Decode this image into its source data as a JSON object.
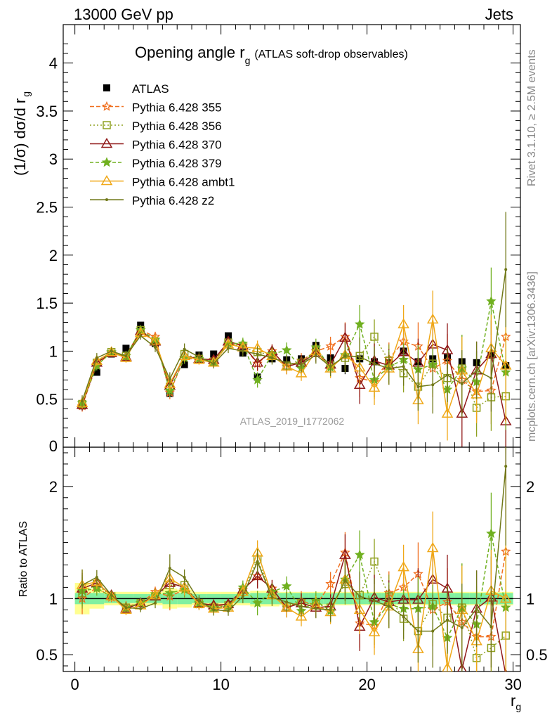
{
  "header": {
    "left": "13000 GeV pp",
    "right": "Jets"
  },
  "side_labels": {
    "rivet": "Rivet 3.1.10, ≥ 2.5M events",
    "mcplots": "mcplots.cern.ch [arXiv:1306.3436]"
  },
  "colors": {
    "ATLAS": "#000000",
    "p355": "#f07020",
    "p356": "#8fa020",
    "p370": "#901818",
    "p379": "#70b020",
    "ambt1": "#f0a818",
    "z2": "#707818",
    "band_inner": "#80f0a0",
    "band_outer": "#ffff90"
  },
  "chart_data": [
    {
      "type": "line",
      "title": "Opening angle r",
      "title_sub": "g",
      "title_suffix": "(ATLAS soft-drop observables)",
      "ylabel": "(1/σ) dσ/d r",
      "ylabel_sub": "g",
      "analysis_label": "ATLAS_2019_I1772062",
      "xlim": [
        -0.8,
        30.5
      ],
      "ylim": [
        0,
        4.4
      ],
      "yticks": [
        0.5,
        1,
        1.5,
        2,
        2.5,
        3,
        3.5,
        4
      ],
      "ytick_labels": [
        "0.5",
        "1",
        "1.5",
        "2",
        "2.5",
        "3",
        "3.5",
        "4"
      ],
      "x": [
        0.5,
        1.5,
        2.5,
        3.5,
        4.5,
        5.5,
        6.5,
        7.5,
        8.5,
        9.5,
        10.5,
        11.5,
        12.5,
        13.5,
        14.5,
        15.5,
        16.5,
        17.5,
        18.5,
        19.5,
        20.5,
        21.5,
        22.5,
        23.5,
        24.5,
        25.5,
        26.5,
        27.5,
        28.5,
        29.5
      ],
      "series": [
        {
          "name": "ATLAS",
          "key": "ATLAS",
          "marker": "square",
          "values": [
            0.43,
            0.78,
            0.97,
            1.03,
            1.27,
            1.08,
            0.56,
            0.86,
            0.96,
            0.97,
            1.16,
            0.98,
            0.73,
            0.92,
            0.91,
            0.92,
            1.06,
            0.93,
            0.82,
            0.92,
            0.89,
            0.88,
            1.0,
            0.89,
            0.92,
            0.93,
            0.89,
            0.88,
            0.96,
            0.85
          ]
        },
        {
          "name": "Pythia 6.428 355",
          "key": "p355",
          "marker": "star-open",
          "dash": "6,3",
          "values": [
            0.43,
            0.86,
            0.98,
            0.95,
            1.22,
            1.15,
            0.57,
            0.93,
            0.91,
            0.91,
            1.08,
            1.06,
            0.87,
            1.0,
            0.84,
            0.9,
            1.0,
            1.05,
            1.15,
            0.72,
            0.68,
            0.92,
            1.1,
            1.05,
            0.82,
            0.9,
            0.7,
            0.58,
            0.59,
            1.15
          ]
        },
        {
          "name": "Pythia 6.428 356",
          "key": "p356",
          "marker": "square-open",
          "dash": "2,3",
          "values": [
            0.45,
            0.88,
            0.99,
            0.95,
            1.22,
            1.1,
            0.63,
            0.97,
            0.92,
            0.89,
            1.09,
            1.04,
            0.99,
            0.96,
            0.85,
            0.88,
            1.01,
            0.85,
            0.93,
            0.95,
            1.15,
            0.9,
            0.77,
            0.63,
            0.87,
            0.72,
            0.82,
            0.41,
            0.52,
            0.53
          ]
        },
        {
          "name": "Pythia 6.428 370",
          "key": "p370",
          "marker": "triangle-open",
          "dash": "",
          "values": [
            0.44,
            0.88,
            0.98,
            0.94,
            1.21,
            1.1,
            0.64,
            0.95,
            0.92,
            0.91,
            1.1,
            1.06,
            0.88,
            1.0,
            0.84,
            0.88,
            0.98,
            0.86,
            1.14,
            0.65,
            0.9,
            0.85,
            0.99,
            0.88,
            1.07,
            1.01,
            0.35,
            0.8,
            0.97,
            0.27
          ]
        },
        {
          "name": "Pythia 6.428 379",
          "key": "p379",
          "marker": "star",
          "dash": "5,3",
          "values": [
            0.46,
            0.85,
            0.99,
            0.95,
            1.22,
            1.12,
            0.59,
            0.93,
            0.92,
            0.89,
            1.08,
            1.08,
            0.7,
            0.97,
            1.01,
            0.82,
            1.04,
            0.83,
            0.96,
            1.28,
            0.7,
            0.84,
            0.91,
            0.81,
            0.86,
            0.6,
            0.82,
            0.68,
            1.52,
            0.78
          ]
        },
        {
          "name": "Pythia 6.428 ambt1",
          "key": "ambt1",
          "marker": "triangle-open",
          "dash": "",
          "values": [
            0.46,
            0.9,
            0.99,
            0.93,
            1.19,
            1.11,
            0.66,
            0.95,
            0.91,
            0.88,
            1.07,
            1.04,
            1.03,
            0.95,
            0.84,
            0.77,
            1.0,
            0.82,
            0.96,
            0.83,
            0.62,
            0.82,
            1.28,
            0.49,
            1.33,
            0.35,
            0.8,
            0.55,
            1.03,
            0.85
          ]
        },
        {
          "name": "Pythia 6.428 z2",
          "key": "z2",
          "marker": "dot",
          "dash": "",
          "values": [
            0.48,
            0.93,
            1.0,
            0.95,
            1.16,
            1.04,
            0.71,
            1.02,
            0.94,
            0.87,
            1.03,
            1.0,
            0.97,
            0.93,
            0.88,
            0.86,
            0.96,
            0.84,
            0.95,
            0.94,
            0.87,
            0.82,
            0.84,
            0.63,
            0.65,
            0.75,
            0.66,
            0.8,
            0.72,
            1.85
          ]
        }
      ],
      "error_bands": {
        "values": [
          0.06,
          0.05,
          0.04,
          0.05,
          0.04,
          0.05,
          0.07,
          0.06,
          0.05,
          0.05,
          0.05,
          0.06,
          0.08,
          0.07,
          0.08,
          0.08,
          0.09,
          0.1,
          0.15,
          0.2,
          0.18,
          0.17,
          0.2,
          0.25,
          0.3,
          0.28,
          0.35,
          0.3,
          0.35,
          0.6
        ]
      }
    },
    {
      "type": "line",
      "ylabel": "Ratio to ATLAS",
      "xlabel": "r",
      "xlabel_sub": "g",
      "xlim": [
        -0.8,
        30.5
      ],
      "xticks": [
        0,
        10,
        20,
        30
      ],
      "xtick_labels": [
        "0",
        "10",
        "20",
        "30"
      ],
      "ylim": [
        0.35,
        2.35
      ],
      "yticks": [
        0.5,
        1,
        2
      ],
      "ytick_labels": [
        "0.5",
        "1",
        "2"
      ],
      "data_band": {
        "inner": [
          0.05,
          0.05,
          0.04,
          0.04,
          0.04,
          0.04,
          0.05,
          0.05,
          0.04,
          0.04,
          0.04,
          0.04,
          0.05,
          0.05,
          0.05,
          0.05,
          0.05,
          0.05,
          0.05,
          0.05,
          0.05,
          0.05,
          0.05,
          0.05,
          0.05,
          0.05,
          0.05,
          0.05,
          0.05,
          0.05
        ],
        "outer": [
          0.14,
          0.09,
          0.06,
          0.06,
          0.06,
          0.06,
          0.09,
          0.08,
          0.06,
          0.06,
          0.06,
          0.06,
          0.07,
          0.07,
          0.06,
          0.06,
          0.06,
          0.06,
          0.06,
          0.06,
          0.06,
          0.06,
          0.06,
          0.06,
          0.06,
          0.06,
          0.06,
          0.06,
          0.06,
          0.06
        ]
      },
      "series": [
        {
          "key": "p355",
          "values": [
            1.0,
            1.1,
            1.01,
            0.93,
            0.96,
            1.06,
            1.02,
            1.08,
            0.95,
            0.94,
            0.93,
            1.08,
            1.2,
            1.09,
            0.92,
            0.98,
            0.94,
            1.13,
            1.41,
            0.78,
            0.76,
            1.05,
            1.1,
            1.22,
            0.9,
            0.97,
            0.79,
            0.66,
            0.66,
            1.42
          ]
        },
        {
          "key": "p356",
          "values": [
            1.05,
            1.13,
            1.02,
            0.92,
            0.96,
            1.02,
            1.12,
            1.12,
            0.96,
            0.92,
            0.94,
            1.06,
            1.35,
            1.04,
            0.93,
            0.96,
            0.95,
            0.92,
            1.13,
            1.03,
            1.33,
            1.02,
            0.82,
            0.71,
            0.95,
            0.83,
            0.92,
            0.47,
            0.56,
            0.67
          ]
        },
        {
          "key": "p370",
          "values": [
            1.09,
            1.14,
            1.03,
            0.91,
            0.96,
            1.02,
            1.14,
            1.1,
            0.96,
            0.94,
            0.95,
            1.08,
            1.2,
            1.09,
            0.92,
            0.96,
            0.92,
            0.93,
            1.39,
            0.75,
            1.01,
            0.97,
            0.99,
            0.99,
            1.17,
            1.09,
            0.37,
            0.91,
            1.01,
            0.32
          ]
        },
        {
          "key": "p379",
          "values": [
            1.07,
            1.09,
            1.02,
            0.92,
            0.96,
            1.04,
            1.05,
            1.08,
            0.96,
            0.92,
            0.93,
            1.1,
            0.96,
            1.06,
            1.11,
            0.89,
            0.98,
            0.89,
            1.17,
            1.39,
            0.79,
            0.95,
            0.91,
            0.91,
            0.93,
            0.65,
            0.92,
            0.77,
            1.58,
            0.92
          ]
        },
        {
          "key": "ambt1",
          "values": [
            1.12,
            1.15,
            1.02,
            0.9,
            0.94,
            1.03,
            1.18,
            1.1,
            0.95,
            0.91,
            0.92,
            1.06,
            1.41,
            1.03,
            0.92,
            0.84,
            0.94,
            0.88,
            1.17,
            0.9,
            0.7,
            0.93,
            1.28,
            0.55,
            1.45,
            0.38,
            0.9,
            0.62,
            1.07,
            1.0
          ]
        },
        {
          "key": "z2",
          "values": [
            1.12,
            1.19,
            1.03,
            0.92,
            0.91,
            0.96,
            1.27,
            1.19,
            0.98,
            0.9,
            0.89,
            1.02,
            1.33,
            1.01,
            0.97,
            0.93,
            0.91,
            0.9,
            1.16,
            1.02,
            0.98,
            0.93,
            0.84,
            0.71,
            0.71,
            0.81,
            0.74,
            0.91,
            0.75,
            2.18
          ]
        }
      ]
    }
  ]
}
